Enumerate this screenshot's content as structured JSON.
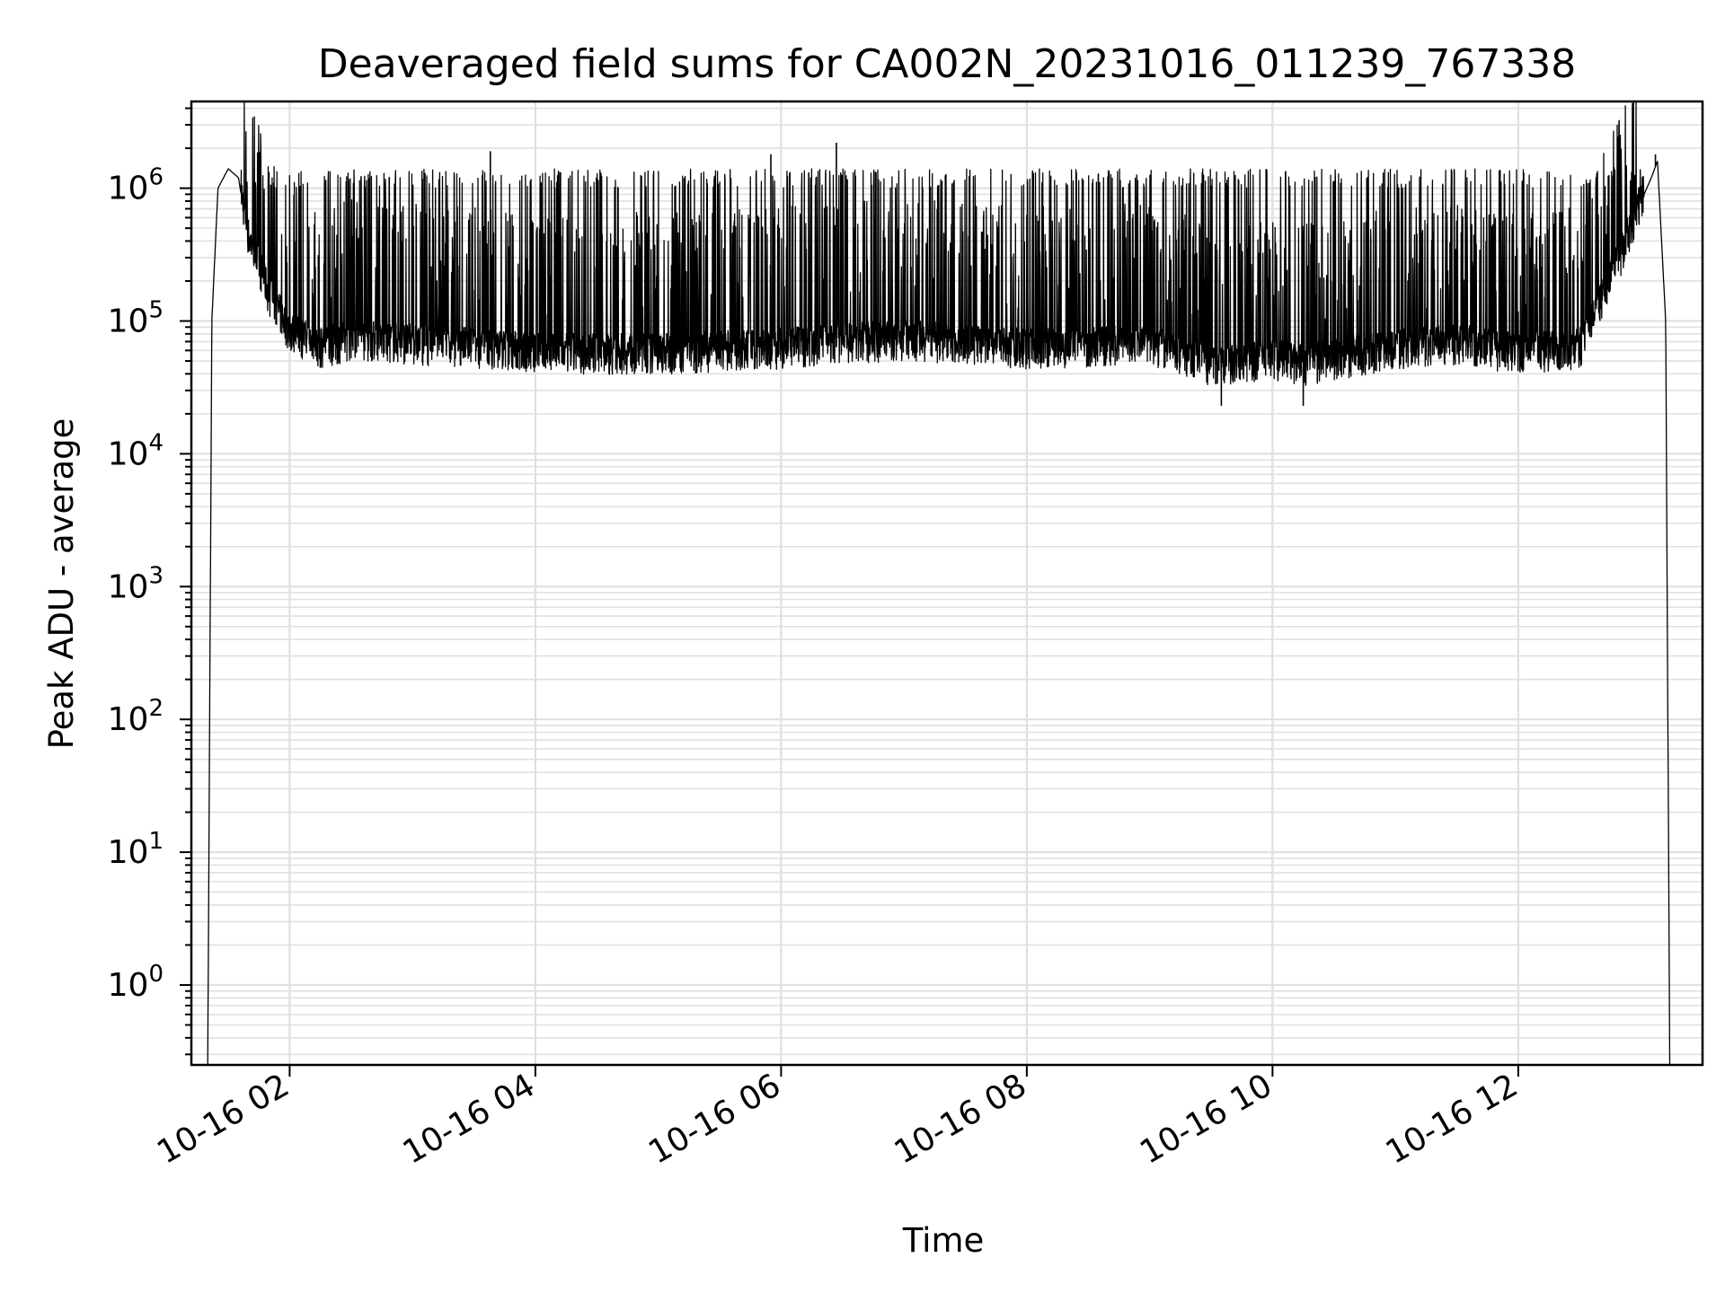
{
  "chart_data": {
    "type": "line",
    "title": "Deaveraged field sums for CA002N_20231016_011239_767338",
    "xlabel": "Time",
    "ylabel": "Peak ADU - average",
    "y_scale": "log",
    "ylim": [
      0.25,
      4500000.0
    ],
    "xlim": [
      "2023-10-16 01:12",
      "2023-10-16 13:30"
    ],
    "grid": true,
    "line_color": "#000000",
    "grid_color": "#e0e0e0",
    "x_ticks": [
      "10-16 02",
      "10-16 04",
      "10-16 06",
      "10-16 08",
      "10-16 10",
      "10-16 12"
    ],
    "y_ticks": [
      {
        "base": "10",
        "exp": "0"
      },
      {
        "base": "10",
        "exp": "1"
      },
      {
        "base": "10",
        "exp": "2"
      },
      {
        "base": "10",
        "exp": "3"
      },
      {
        "base": "10",
        "exp": "4"
      },
      {
        "base": "10",
        "exp": "5"
      },
      {
        "base": "10",
        "exp": "6"
      }
    ],
    "series": [
      {
        "x": [
          "2023-10-16 01:20",
          "2023-10-16 01:22",
          "2023-10-16 01:25",
          "2023-10-16 01:30",
          "2023-10-16 01:35",
          "2023-10-16 01:40",
          "2023-10-16 01:45",
          "2023-10-16 01:50",
          "2023-10-16 02:00",
          "2023-10-16 02:15",
          "2023-10-16 02:30",
          "2023-10-16 03:00",
          "2023-10-16 03:40",
          "2023-10-16 04:00",
          "2023-10-16 05:00",
          "2023-10-16 06:00",
          "2023-10-16 06:30",
          "2023-10-16 07:00",
          "2023-10-16 08:00",
          "2023-10-16 09:00",
          "2023-10-16 09:30",
          "2023-10-16 10:00",
          "2023-10-16 10:15",
          "2023-10-16 11:00",
          "2023-10-16 11:30",
          "2023-10-16 12:00",
          "2023-10-16 12:30",
          "2023-10-16 12:50",
          "2023-10-16 13:00",
          "2023-10-16 13:05",
          "2023-10-16 13:08",
          "2023-10-16 13:12",
          "2023-10-16 13:14"
        ],
        "y": [
          0.25,
          100000,
          1000000,
          1400000,
          1200000,
          400000,
          250000,
          150000,
          80000,
          60000,
          70000,
          65000,
          60000,
          55000,
          55000,
          60000,
          65000,
          70000,
          60000,
          65000,
          45000,
          50000,
          45000,
          60000,
          65000,
          55000,
          60000,
          300000,
          800000,
          1200000,
          1600000,
          100000,
          0.25
        ],
        "spikes": [
          {
            "x": "2023-10-16 03:38",
            "y": 1900000
          },
          {
            "x": "2023-10-16 05:55",
            "y": 1800000
          },
          {
            "x": "2023-10-16 06:27",
            "y": 2200000
          },
          {
            "x": "2023-10-16 13:07",
            "y": 1800000
          }
        ],
        "dips": [
          {
            "x": "2023-10-16 09:35",
            "y": 23000
          },
          {
            "x": "2023-10-16 10:15",
            "y": 23000
          }
        ],
        "peak_band": [
          1000000,
          1400000
        ]
      }
    ]
  }
}
